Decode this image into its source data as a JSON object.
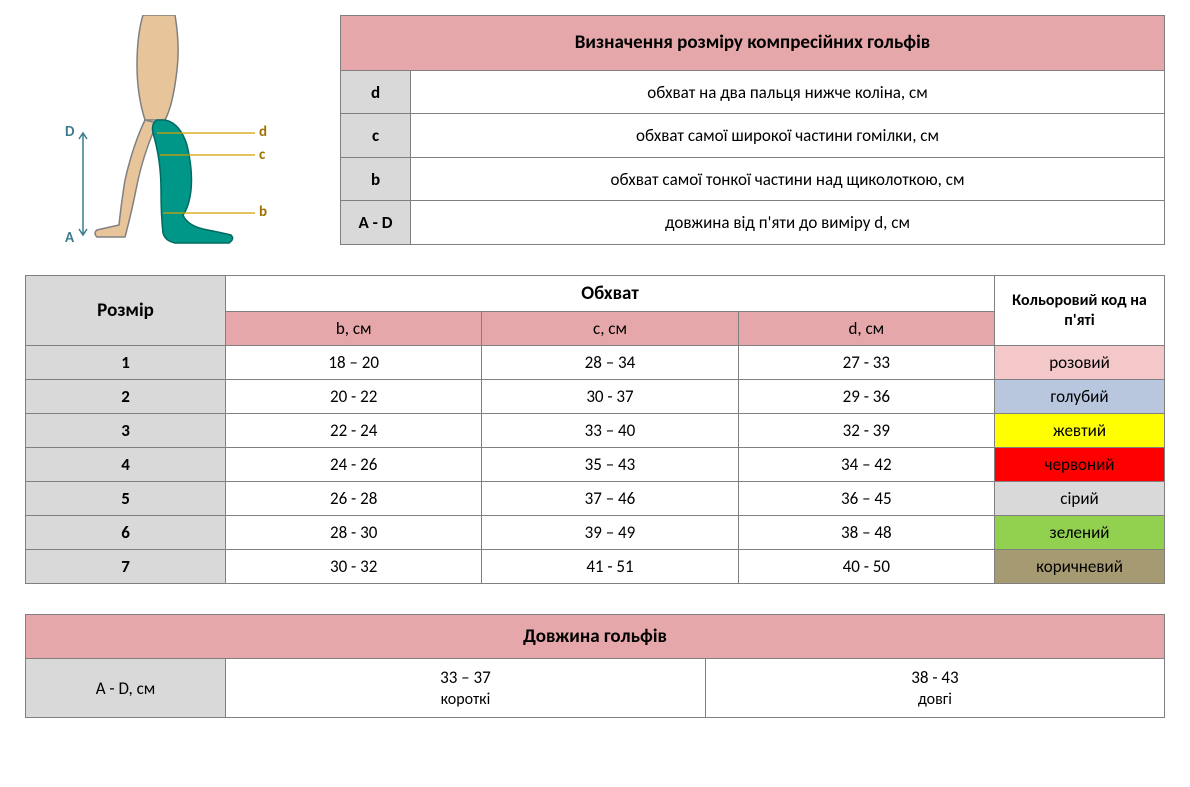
{
  "colors": {
    "header_bg": "#e5a7aa",
    "gray_bg": "#d9d9d9",
    "border": "#808080",
    "leg_skin": "#e8c49a",
    "leg_outline": "#808080",
    "sock": "#009688",
    "marker": "#d4a000",
    "label_d_upper": "#3a7a8c"
  },
  "diagram": {
    "label_D": "D",
    "label_A": "A",
    "label_d": "d",
    "label_c": "c",
    "label_b": "b"
  },
  "definition": {
    "title": "Визначення розміру компресійних гольфів",
    "rows": [
      {
        "label": "d",
        "text": "обхват на два пальця нижче коліна, см"
      },
      {
        "label": "c",
        "text": "обхват самої широкої частини гомілки, см"
      },
      {
        "label": "b",
        "text": "обхват самої тонкої частини над щиколоткою, см"
      },
      {
        "label": "A - D",
        "text": "довжина від п'яти до виміру d, см"
      }
    ]
  },
  "sizing": {
    "size_header": "Розмір",
    "girth_header": "Обхват",
    "color_header": "Кольоровий код на п'яті",
    "sub_headers": {
      "b": "b, см",
      "c": "c, см",
      "d": "d, см"
    },
    "rows": [
      {
        "size": "1",
        "b": "18 – 20",
        "c": "28 – 34",
        "d": "27 - 33",
        "color_label": "розовий",
        "color_bg": "#f4c7c9"
      },
      {
        "size": "2",
        "b": "20 - 22",
        "c": "30 - 37",
        "d": "29 - 36",
        "color_label": "голубий",
        "color_bg": "#b8c7de"
      },
      {
        "size": "3",
        "b": "22 - 24",
        "c": "33 – 40",
        "d": "32 - 39",
        "color_label": "жевтий",
        "color_bg": "#ffff00"
      },
      {
        "size": "4",
        "b": "24 - 26",
        "c": "35 – 43",
        "d": "34 – 42",
        "color_label": "червоний",
        "color_bg": "#ff0000"
      },
      {
        "size": "5",
        "b": "26 - 28",
        "c": "37 – 46",
        "d": "36 – 45",
        "color_label": "сірий",
        "color_bg": "#d9d9d9"
      },
      {
        "size": "6",
        "b": "28 - 30",
        "c": "39 – 49",
        "d": "38 – 48",
        "color_label": "зелений",
        "color_bg": "#92d050"
      },
      {
        "size": "7",
        "b": "30 - 32",
        "c": "41 - 51",
        "d": "40 - 50",
        "color_label": "коричневий",
        "color_bg": "#a69a72"
      }
    ]
  },
  "length": {
    "title": "Довжина гольфів",
    "label": "A - D, см",
    "options": [
      {
        "range": "33 – 37",
        "text": "короткі"
      },
      {
        "range": "38 - 43",
        "text": "довгі"
      }
    ]
  }
}
